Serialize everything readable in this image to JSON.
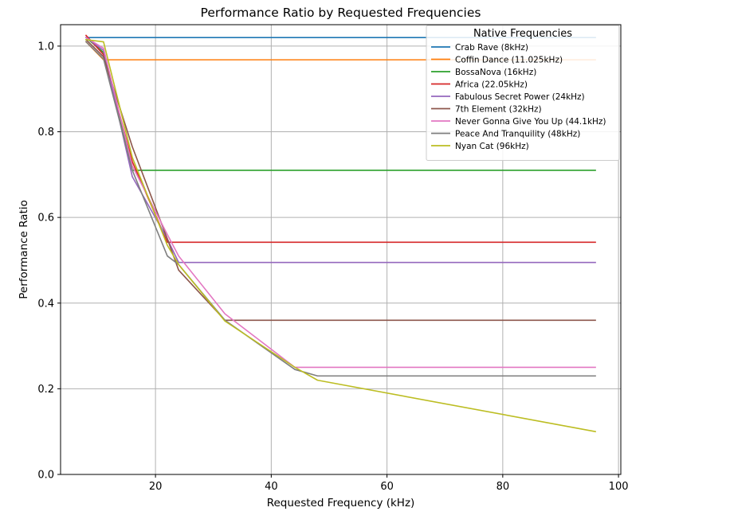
{
  "chart_data": {
    "type": "line",
    "title": "Performance Ratio by Requested Frequencies",
    "xlabel": "Requested Frequency (kHz)",
    "ylabel": "Performance Ratio",
    "xlim": [
      3.6,
      100.4
    ],
    "ylim": [
      0,
      1.05
    ],
    "xticks": [
      20,
      40,
      60,
      80,
      100
    ],
    "yticks": [
      0.0,
      0.2,
      0.4,
      0.6,
      0.8,
      1.0
    ],
    "xtick_labels": [
      "20",
      "40",
      "60",
      "80",
      "100"
    ],
    "ytick_labels": [
      "0.0",
      "0.2",
      "0.4",
      "0.6",
      "0.8",
      "1.0"
    ],
    "grid": true,
    "legend": {
      "title": "Native Frequencies",
      "placement": "top-right"
    },
    "series": [
      {
        "name": "Crab Rave (8kHz)",
        "color": "#1f77b4",
        "x": [
          8,
          11.025,
          16,
          22.05,
          24,
          32,
          44.1,
          48,
          96
        ],
        "y": [
          1.02,
          1.02,
          1.02,
          1.02,
          1.02,
          1.02,
          1.02,
          1.02,
          1.02
        ]
      },
      {
        "name": "Coffin Dance (11.025kHz)",
        "color": "#ff7f0e",
        "x": [
          8,
          11.025,
          16,
          22.05,
          24,
          32,
          44.1,
          48,
          96
        ],
        "y": [
          1.01,
          0.968,
          0.968,
          0.968,
          0.968,
          0.968,
          0.968,
          0.968,
          0.968
        ]
      },
      {
        "name": "BossaNova (16kHz)",
        "color": "#2ca02c",
        "x": [
          8,
          11.025,
          16,
          22.05,
          24,
          32,
          44.1,
          48,
          96
        ],
        "y": [
          1.02,
          0.985,
          0.71,
          0.71,
          0.71,
          0.71,
          0.71,
          0.71,
          0.71
        ]
      },
      {
        "name": "Africa (22.05kHz)",
        "color": "#d62728",
        "x": [
          8,
          11.025,
          16,
          22.05,
          24,
          32,
          44.1,
          48,
          96
        ],
        "y": [
          1.025,
          0.98,
          0.73,
          0.542,
          0.542,
          0.542,
          0.542,
          0.542,
          0.542
        ]
      },
      {
        "name": "Fabulous Secret Power (24kHz)",
        "color": "#9467bd",
        "x": [
          8,
          11.025,
          16,
          22.05,
          24,
          32,
          44.1,
          48,
          96
        ],
        "y": [
          1.02,
          0.99,
          0.695,
          0.55,
          0.495,
          0.495,
          0.495,
          0.495,
          0.495
        ]
      },
      {
        "name": "7th Element (32kHz)",
        "color": "#8c564b",
        "x": [
          8,
          11.025,
          16,
          22.05,
          24,
          32,
          44.1,
          48,
          96
        ],
        "y": [
          1.015,
          0.975,
          0.765,
          0.55,
          0.477,
          0.36,
          0.36,
          0.36,
          0.36
        ]
      },
      {
        "name": "Never Gonna Give You Up (44.1kHz)",
        "color": "#e377c2",
        "x": [
          8,
          11.025,
          16,
          22.05,
          24,
          32,
          44.1,
          48,
          96
        ],
        "y": [
          1.02,
          0.995,
          0.72,
          0.56,
          0.51,
          0.375,
          0.25,
          0.25,
          0.25
        ]
      },
      {
        "name": "Peace And Tranquility (48kHz)",
        "color": "#7f7f7f",
        "x": [
          8,
          11.025,
          16,
          22.05,
          24,
          32,
          44.1,
          48,
          96
        ],
        "y": [
          1.01,
          0.97,
          0.71,
          0.51,
          0.49,
          0.36,
          0.245,
          0.23,
          0.23
        ]
      },
      {
        "name": "Nyan Cat (96kHz)",
        "color": "#bcbd22",
        "x": [
          8,
          11.025,
          16,
          22.05,
          24,
          32,
          44.1,
          48,
          96
        ],
        "y": [
          1.015,
          1.01,
          0.74,
          0.535,
          0.49,
          0.358,
          0.25,
          0.22,
          0.1
        ]
      }
    ]
  }
}
